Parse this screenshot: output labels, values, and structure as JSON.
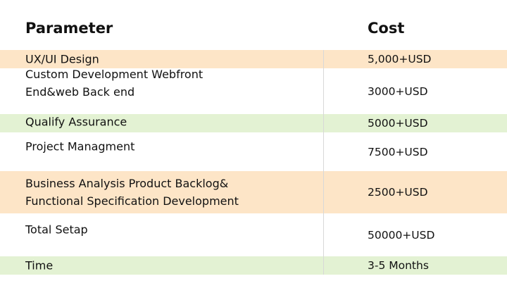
{
  "headers": {
    "parameter": "Parameter",
    "cost": "Cost"
  },
  "colors": {
    "orange": "#fde5c7",
    "green": "#e3f2d3",
    "white": "#ffffff"
  },
  "rows": [
    {
      "parameter": "UX/UI Design",
      "cost": "5,000+USD",
      "bg": "orange"
    },
    {
      "parameter": "Custom Development Webfront End&web Back end",
      "cost": "3000+USD",
      "bg": "white"
    },
    {
      "parameter": "Qualify Assurance",
      "cost": "5000+USD",
      "bg": "green"
    },
    {
      "parameter": "Project Managment",
      "cost": "7500+USD",
      "bg": "white"
    },
    {
      "parameter": "Business Analysis Product Backlog& Functional Specification Development",
      "cost": "2500+USD",
      "bg": "orange"
    },
    {
      "parameter": "Total Setap",
      "cost": "50000+USD",
      "bg": "white"
    },
    {
      "parameter": "Time",
      "cost": "3-5 Months",
      "bg": "green"
    }
  ]
}
